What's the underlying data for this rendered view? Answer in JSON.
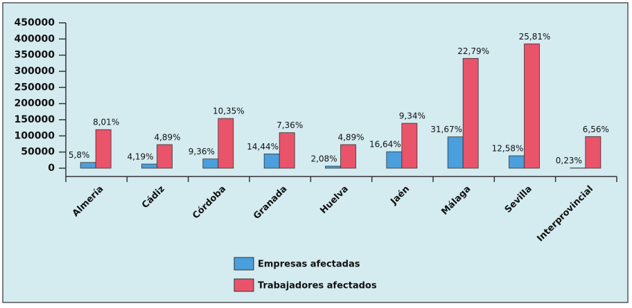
{
  "chart_data": {
    "type": "bar",
    "categories": [
      "Almería",
      "Cádiz",
      "Córdoba",
      "Granada",
      "Huelva",
      "Jaén",
      "Málaga",
      "Sevilla",
      "Interprovincial"
    ],
    "series": [
      {
        "name": "Empresas afectadas",
        "color": "#4a9fdc",
        "values": [
          17700,
          12800,
          28600,
          44200,
          6400,
          50900,
          97000,
          38500,
          700
        ],
        "share_labels": [
          "5,8%",
          "4,19%",
          "9,36%",
          "14,44%",
          "2,08%",
          "16,64%",
          "31,67%",
          "12,58%",
          "0,23%"
        ]
      },
      {
        "name": "Trabajadores afectados",
        "color": "#e9546b",
        "values": [
          119500,
          73000,
          154000,
          110000,
          73000,
          139000,
          340000,
          385000,
          98000
        ],
        "share_labels": [
          "8,01%",
          "4,89%",
          "10,35%",
          "7,36%",
          "4,89%",
          "9,34%",
          "22,79%",
          "25,81%",
          "6,56%"
        ]
      }
    ],
    "ylim": [
      0,
      450000
    ],
    "yticks": [
      0,
      50000,
      100000,
      150000,
      200000,
      250000,
      300000,
      350000,
      400000,
      450000
    ],
    "grid": false
  }
}
